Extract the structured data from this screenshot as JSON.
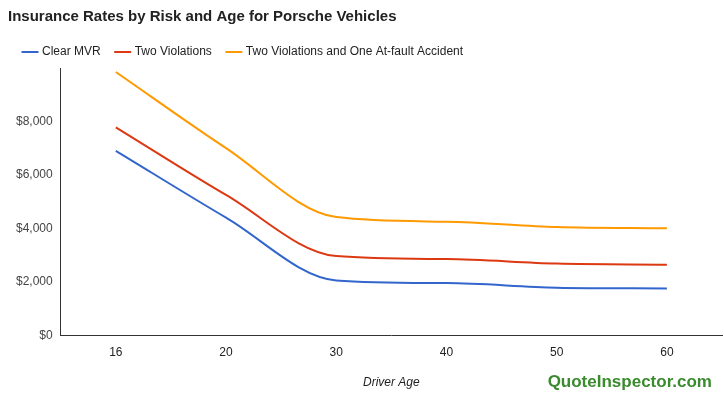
{
  "chart_data": {
    "type": "line",
    "title": "Insurance Rates by Risk and Age for Porsche Vehicles",
    "x_label": "Driver Age",
    "annotations": [
      "QuoteInspector.com"
    ],
    "categories": [
      "16",
      "20",
      "30",
      "40",
      "50",
      "60"
    ],
    "series": [
      {
        "name": "Clear MVR",
        "color": "#3366cc",
        "values": [
          6900,
          4400,
          2050,
          1950,
          1780,
          1750
        ]
      },
      {
        "name": "Two Violations",
        "color": "#dc3912",
        "values": [
          7780,
          5250,
          2960,
          2850,
          2680,
          2640
        ]
      },
      {
        "name": "Two Violations and One At-fault Accident",
        "color": "#ff9900",
        "values": [
          9850,
          7000,
          4420,
          4250,
          4050,
          4000
        ]
      }
    ],
    "ylim": [
      0,
      10000
    ],
    "yticks": [
      {
        "value": 0,
        "label": "$0"
      },
      {
        "value": 2000,
        "label": "$2,000"
      },
      {
        "value": 4000,
        "label": "$4,000"
      },
      {
        "value": 6000,
        "label": "$6,000"
      },
      {
        "value": 8000,
        "label": "$8,000"
      }
    ],
    "grid": false,
    "legend": "top-left"
  }
}
